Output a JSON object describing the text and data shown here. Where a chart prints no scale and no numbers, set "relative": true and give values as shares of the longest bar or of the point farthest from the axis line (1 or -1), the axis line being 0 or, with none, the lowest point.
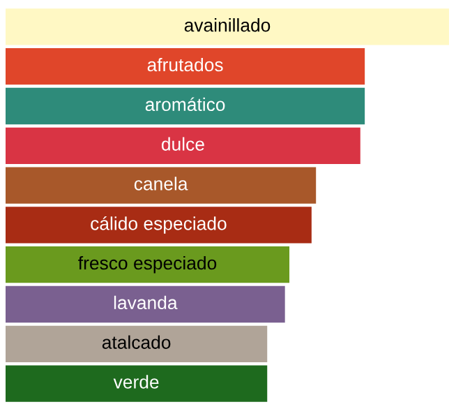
{
  "chart_data": {
    "type": "bar",
    "orientation": "horizontal",
    "relative": true,
    "categories": [
      "avainillado",
      "afrutados",
      "aromático",
      "dulce",
      "canela",
      "cálido especiado",
      "fresco especiado",
      "lavanda",
      "atalcado",
      "verde"
    ],
    "values": [
      1,
      0.81,
      0.81,
      0.8,
      0.7,
      0.69,
      0.64,
      0.63,
      0.59,
      0.59
    ],
    "colors": [
      "#fff8c4",
      "#e0462a",
      "#2e8b7a",
      "#d93444",
      "#a8582a",
      "#a82c14",
      "#6a9a1e",
      "#7a6090",
      "#b0a498",
      "#1e6a1e"
    ]
  }
}
